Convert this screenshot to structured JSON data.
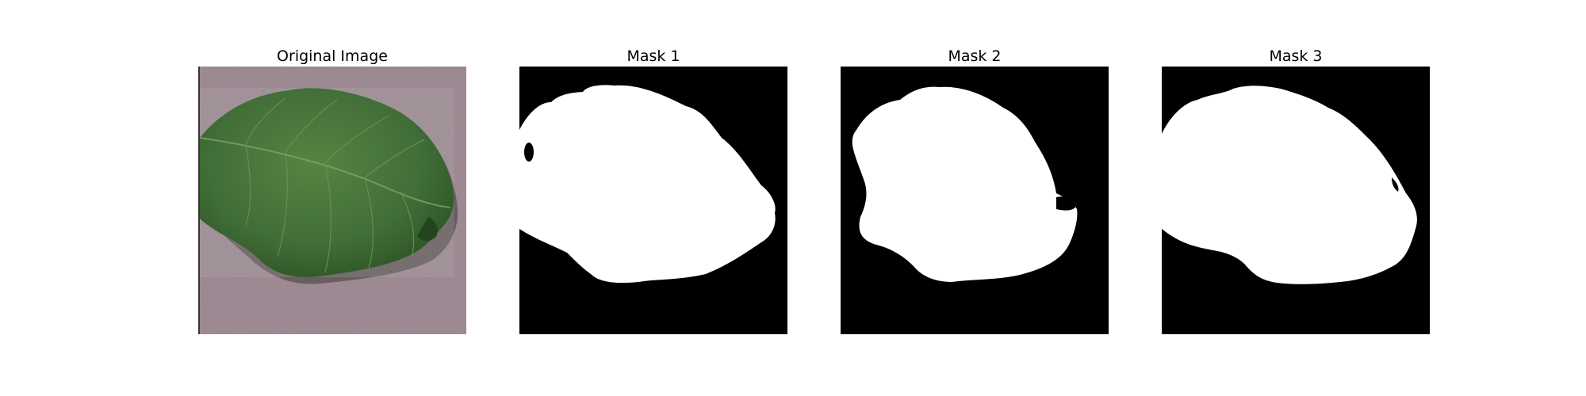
{
  "panels": [
    {
      "title": "Original Image",
      "content": "potato leaf photograph on mauve background"
    },
    {
      "title": "Mask 1",
      "content": "binary segmentation mask"
    },
    {
      "title": "Mask 2",
      "content": "binary segmentation mask"
    },
    {
      "title": "Mask 3",
      "content": "binary segmentation mask"
    }
  ],
  "colors": {
    "figure_background": "#ffffff",
    "photo_background": "#a38f98",
    "leaf_dark": "#2f5a27",
    "leaf_mid": "#4e7f3d",
    "mask_foreground": "#ffffff",
    "mask_background": "#000000"
  }
}
